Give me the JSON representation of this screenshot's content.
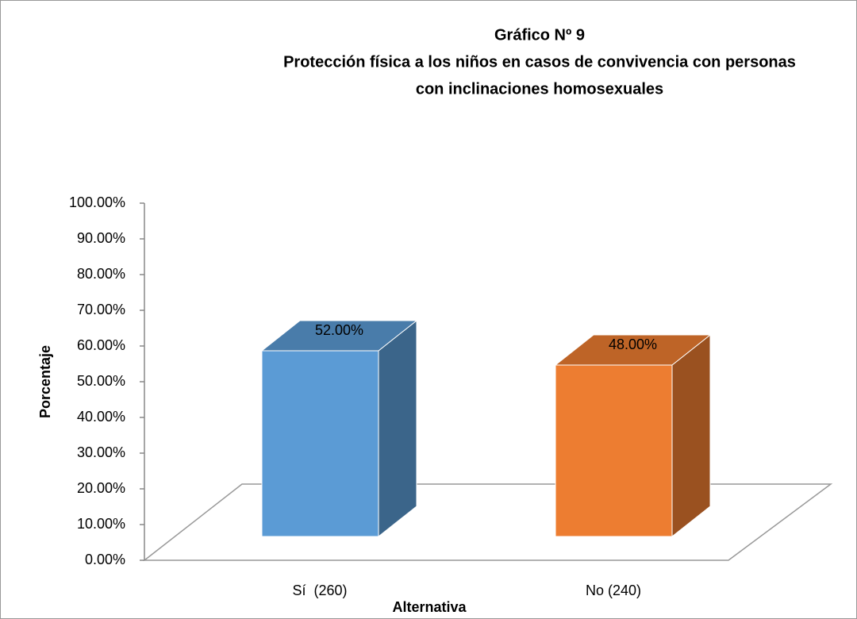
{
  "chart_data": {
    "type": "bar3d",
    "title": [
      "Gráfico Nº 9",
      "Protección física a los niños en casos de convivencia con personas",
      "con inclinaciones homosexuales"
    ],
    "x_label": "Alternativa",
    "y_label": "Porcentaje",
    "categories": [
      "Sí  (260)",
      "No (240)"
    ],
    "values": [
      52,
      48
    ],
    "value_labels": [
      "52.00%",
      "48.00%"
    ],
    "colors": [
      "#5b9bd5",
      "#ed7d31"
    ],
    "ylim": [
      0,
      100
    ],
    "yticks": [
      {
        "value": 0,
        "label": "0.00%"
      },
      {
        "value": 10,
        "label": "10.00%"
      },
      {
        "value": 20,
        "label": "20.00%"
      },
      {
        "value": 30,
        "label": "30.00%"
      },
      {
        "value": 40,
        "label": "40.00%"
      },
      {
        "value": 50,
        "label": "50.00%"
      },
      {
        "value": 60,
        "label": "60.00%"
      },
      {
        "value": 70,
        "label": "70.00%"
      },
      {
        "value": 80,
        "label": "80.00%"
      },
      {
        "value": 90,
        "label": "90.00%"
      },
      {
        "value": 100,
        "label": "100.00%"
      }
    ]
  }
}
